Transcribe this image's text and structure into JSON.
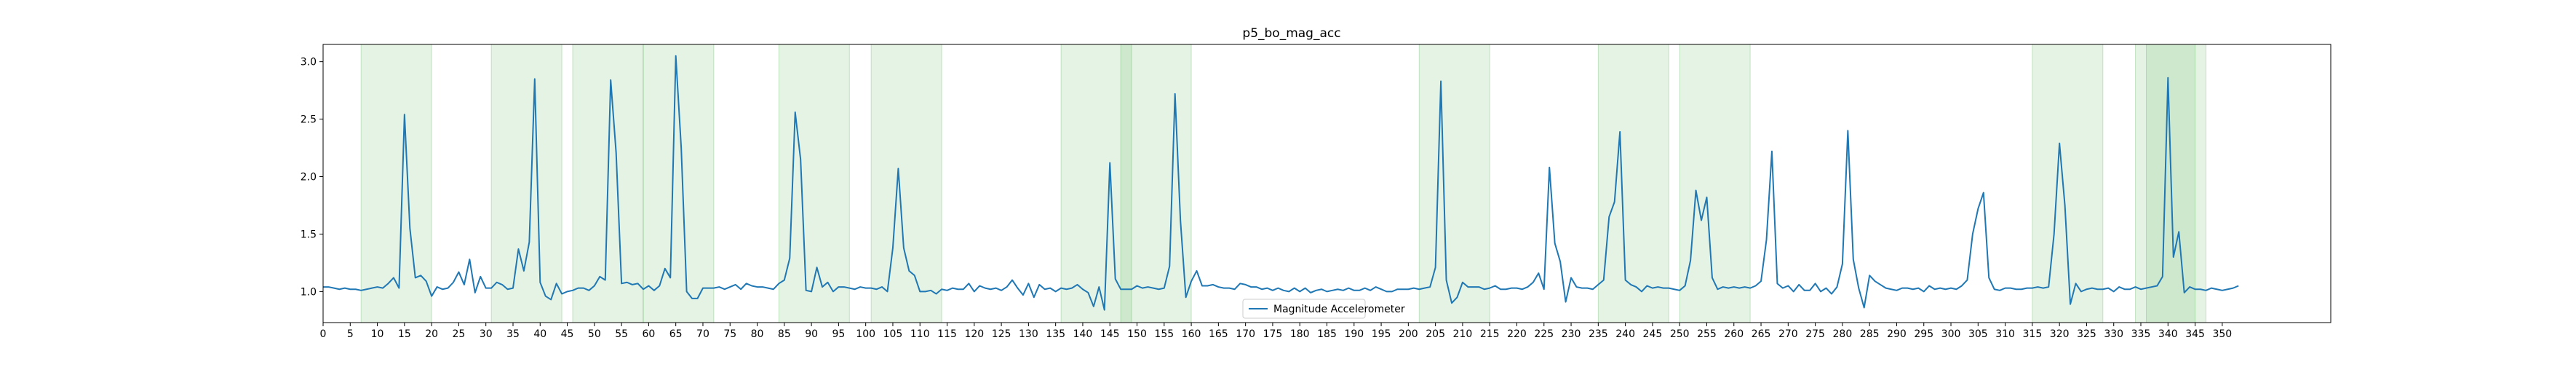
{
  "chart_data": {
    "type": "line",
    "title": "p5_bo_mag_acc",
    "xlabel": "",
    "ylabel": "",
    "xlim": [
      0,
      370
    ],
    "ylim": [
      0.73,
      3.15
    ],
    "x_ticks": [
      0,
      5,
      10,
      15,
      20,
      25,
      30,
      35,
      40,
      45,
      50,
      55,
      60,
      65,
      70,
      75,
      80,
      85,
      90,
      95,
      100,
      105,
      110,
      115,
      120,
      125,
      130,
      135,
      140,
      145,
      150,
      155,
      160,
      165,
      170,
      175,
      180,
      185,
      190,
      195,
      200,
      205,
      210,
      215,
      220,
      225,
      230,
      235,
      240,
      245,
      250,
      255,
      260,
      265,
      270,
      275,
      280,
      285,
      290,
      295,
      300,
      305,
      310,
      315,
      320,
      325,
      330,
      335,
      340,
      345,
      350
    ],
    "x_tick_labels": [
      "0",
      "5",
      "10",
      "15",
      "20",
      "25",
      "30",
      "35",
      "40",
      "45",
      "50",
      "55",
      "60",
      "65",
      "70",
      "75",
      "80",
      "85",
      "90",
      "95",
      "100",
      "105",
      "110",
      "115",
      "120",
      "125",
      "130",
      "135",
      "140",
      "145",
      "150",
      "155",
      "160",
      "165",
      "170",
      "175",
      "180",
      "185",
      "190",
      "195",
      "200",
      "205",
      "210",
      "215",
      "220",
      "225",
      "230",
      "235",
      "240",
      "245",
      "250",
      "255",
      "260",
      "265",
      "270",
      "275",
      "280",
      "285",
      "290",
      "295",
      "300",
      "305",
      "310",
      "315",
      "320",
      "325",
      "330",
      "335",
      "340",
      "345",
      "350"
    ],
    "y_ticks": [
      1.0,
      1.5,
      2.0,
      2.5,
      3.0
    ],
    "y_tick_labels": [
      "1.0",
      "1.5",
      "2.0",
      "2.5",
      "3.0"
    ],
    "grid": false,
    "legend_position": "bottom-center",
    "line_color": "#1f77b4",
    "shade_color": "#2ca02c",
    "shaded_regions": [
      [
        7,
        20
      ],
      [
        31,
        44
      ],
      [
        46,
        59
      ],
      [
        59,
        72
      ],
      [
        84,
        97
      ],
      [
        101,
        114
      ],
      [
        136,
        149
      ],
      [
        147,
        160
      ],
      [
        202,
        215
      ],
      [
        235,
        248
      ],
      [
        250,
        263
      ],
      [
        315,
        328
      ],
      [
        334,
        347
      ],
      [
        336,
        345
      ]
    ],
    "series": [
      {
        "name": "Magnitude Accelerometer",
        "x": [
          0,
          1,
          2,
          3,
          4,
          5,
          6,
          7,
          8,
          9,
          10,
          11,
          12,
          13,
          14,
          15,
          16,
          17,
          18,
          19,
          20,
          21,
          22,
          23,
          24,
          25,
          26,
          27,
          28,
          29,
          30,
          31,
          32,
          33,
          34,
          35,
          36,
          37,
          38,
          39,
          40,
          41,
          42,
          43,
          44,
          45,
          46,
          47,
          48,
          49,
          50,
          51,
          52,
          53,
          54,
          55,
          56,
          57,
          58,
          59,
          60,
          61,
          62,
          63,
          64,
          65,
          66,
          67,
          68,
          69,
          70,
          71,
          72,
          73,
          74,
          75,
          76,
          77,
          78,
          79,
          80,
          81,
          82,
          83,
          84,
          85,
          86,
          87,
          88,
          89,
          90,
          91,
          92,
          93,
          94,
          95,
          96,
          97,
          98,
          99,
          100,
          101,
          102,
          103,
          104,
          105,
          106,
          107,
          108,
          109,
          110,
          111,
          112,
          113,
          114,
          115,
          116,
          117,
          118,
          119,
          120,
          121,
          122,
          123,
          124,
          125,
          126,
          127,
          128,
          129,
          130,
          131,
          132,
          133,
          134,
          135,
          136,
          137,
          138,
          139,
          140,
          141,
          142,
          143,
          144,
          145,
          146,
          147,
          148,
          149,
          150,
          151,
          152,
          153,
          154,
          155,
          156,
          157,
          158,
          159,
          160,
          161,
          162,
          163,
          164,
          165,
          166,
          167,
          168,
          169,
          170,
          171,
          172,
          173,
          174,
          175,
          176,
          177,
          178,
          179,
          180,
          181,
          182,
          183,
          184,
          185,
          186,
          187,
          188,
          189,
          190,
          191,
          192,
          193,
          194,
          195,
          196,
          197,
          198,
          199,
          200,
          201,
          202,
          203,
          204,
          205,
          206,
          207,
          208,
          209,
          210,
          211,
          212,
          213,
          214,
          215,
          216,
          217,
          218,
          219,
          220,
          221,
          222,
          223,
          224,
          225,
          226,
          227,
          228,
          229,
          230,
          231,
          232,
          233,
          234,
          235,
          236,
          237,
          238,
          239,
          240,
          241,
          242,
          243,
          244,
          245,
          246,
          247,
          248,
          249,
          250,
          251,
          252,
          253,
          254,
          255,
          256,
          257,
          258,
          259,
          260,
          261,
          262,
          263,
          264,
          265,
          266,
          267,
          268,
          269,
          270,
          271,
          272,
          273,
          274,
          275,
          276,
          277,
          278,
          279,
          280,
          281,
          282,
          283,
          284,
          285,
          286,
          287,
          288,
          289,
          290,
          291,
          292,
          293,
          294,
          295,
          296,
          297,
          298,
          299,
          300,
          301,
          302,
          303,
          304,
          305,
          306,
          307,
          308,
          309,
          310,
          311,
          312,
          313,
          314,
          315,
          316,
          317,
          318,
          319,
          320,
          321,
          322,
          323,
          324,
          325,
          326,
          327,
          328,
          329,
          330,
          331,
          332,
          333,
          334,
          335,
          336,
          337,
          338,
          339,
          340,
          341,
          342,
          343,
          344,
          345,
          346,
          347,
          348,
          349,
          350,
          351,
          352,
          353
        ],
        "y": [
          1.04,
          1.04,
          1.03,
          1.02,
          1.03,
          1.02,
          1.02,
          1.01,
          1.02,
          1.03,
          1.04,
          1.03,
          1.07,
          1.12,
          1.03,
          2.54,
          1.55,
          1.12,
          1.14,
          1.09,
          0.96,
          1.04,
          1.02,
          1.03,
          1.08,
          1.17,
          1.06,
          1.28,
          0.99,
          1.13,
          1.03,
          1.03,
          1.08,
          1.06,
          1.02,
          1.03,
          1.37,
          1.18,
          1.43,
          2.85,
          1.08,
          0.96,
          0.93,
          1.07,
          0.98,
          1.0,
          1.01,
          1.03,
          1.03,
          1.01,
          1.05,
          1.13,
          1.1,
          2.84,
          2.21,
          1.07,
          1.08,
          1.06,
          1.07,
          1.02,
          1.05,
          1.01,
          1.05,
          1.2,
          1.12,
          3.05,
          2.25,
          1.0,
          0.94,
          0.94,
          1.03,
          1.03,
          1.03,
          1.04,
          1.02,
          1.04,
          1.06,
          1.02,
          1.07,
          1.05,
          1.04,
          1.04,
          1.03,
          1.02,
          1.07,
          1.1,
          1.29,
          2.56,
          2.15,
          1.01,
          1.0,
          1.21,
          1.04,
          1.08,
          1.0,
          1.04,
          1.04,
          1.03,
          1.02,
          1.04,
          1.03,
          1.03,
          1.02,
          1.04,
          1.0,
          1.38,
          2.07,
          1.38,
          1.18,
          1.14,
          1.0,
          1.0,
          1.01,
          0.98,
          1.02,
          1.01,
          1.03,
          1.02,
          1.02,
          1.07,
          1.0,
          1.05,
          1.03,
          1.02,
          1.03,
          1.01,
          1.04,
          1.1,
          1.03,
          0.97,
          1.07,
          0.95,
          1.06,
          1.02,
          1.03,
          1.0,
          1.03,
          1.02,
          1.03,
          1.06,
          1.02,
          0.99,
          0.87,
          1.04,
          0.84,
          2.12,
          1.11,
          1.02,
          1.02,
          1.02,
          1.05,
          1.03,
          1.04,
          1.03,
          1.02,
          1.03,
          1.22,
          2.72,
          1.62,
          0.95,
          1.09,
          1.18,
          1.05,
          1.05,
          1.06,
          1.04,
          1.03,
          1.03,
          1.02,
          1.07,
          1.06,
          1.04,
          1.04,
          1.02,
          1.03,
          1.01,
          1.03,
          1.01,
          1.0,
          1.03,
          1.0,
          1.03,
          0.99,
          1.01,
          1.02,
          1.0,
          1.01,
          1.02,
          1.01,
          1.03,
          1.01,
          1.01,
          1.03,
          1.01,
          1.04,
          1.02,
          1.0,
          1.0,
          1.02,
          1.02,
          1.02,
          1.03,
          1.02,
          1.03,
          1.04,
          1.21,
          2.83,
          1.1,
          0.9,
          0.95,
          1.08,
          1.04,
          1.04,
          1.04,
          1.02,
          1.03,
          1.05,
          1.02,
          1.02,
          1.03,
          1.03,
          1.02,
          1.04,
          1.08,
          1.16,
          1.02,
          2.08,
          1.42,
          1.26,
          0.91,
          1.12,
          1.04,
          1.03,
          1.03,
          1.02,
          1.06,
          1.1,
          1.65,
          1.78,
          2.39,
          1.1,
          1.06,
          1.04,
          1.0,
          1.05,
          1.03,
          1.04,
          1.03,
          1.03,
          1.02,
          1.01,
          1.05,
          1.27,
          1.88,
          1.62,
          1.82,
          1.12,
          1.02,
          1.04,
          1.03,
          1.04,
          1.03,
          1.04,
          1.03,
          1.05,
          1.09,
          1.45,
          2.22,
          1.07,
          1.03,
          1.05,
          1.0,
          1.06,
          1.01,
          1.01,
          1.07,
          1.0,
          1.03,
          0.98,
          1.04,
          1.24,
          2.4,
          1.28,
          1.03,
          0.86,
          1.14,
          1.09,
          1.06,
          1.03,
          1.02,
          1.01,
          1.03,
          1.03,
          1.02,
          1.03,
          1.0,
          1.05,
          1.02,
          1.03,
          1.02,
          1.03,
          1.02,
          1.05,
          1.1,
          1.5,
          1.72,
          1.86,
          1.12,
          1.02,
          1.01,
          1.03,
          1.03,
          1.02,
          1.02,
          1.03,
          1.03,
          1.04,
          1.03,
          1.04,
          1.5,
          2.29,
          1.75,
          0.89,
          1.07,
          1.0,
          1.02,
          1.03,
          1.02,
          1.02,
          1.03,
          1.0,
          1.04,
          1.02,
          1.02,
          1.04,
          1.02,
          1.03,
          1.04,
          1.05,
          1.13,
          2.86,
          1.3,
          1.52,
          0.99,
          1.04,
          1.02,
          1.02,
          1.01,
          1.03,
          1.02,
          1.01,
          1.02,
          1.03,
          1.05
        ]
      }
    ]
  }
}
